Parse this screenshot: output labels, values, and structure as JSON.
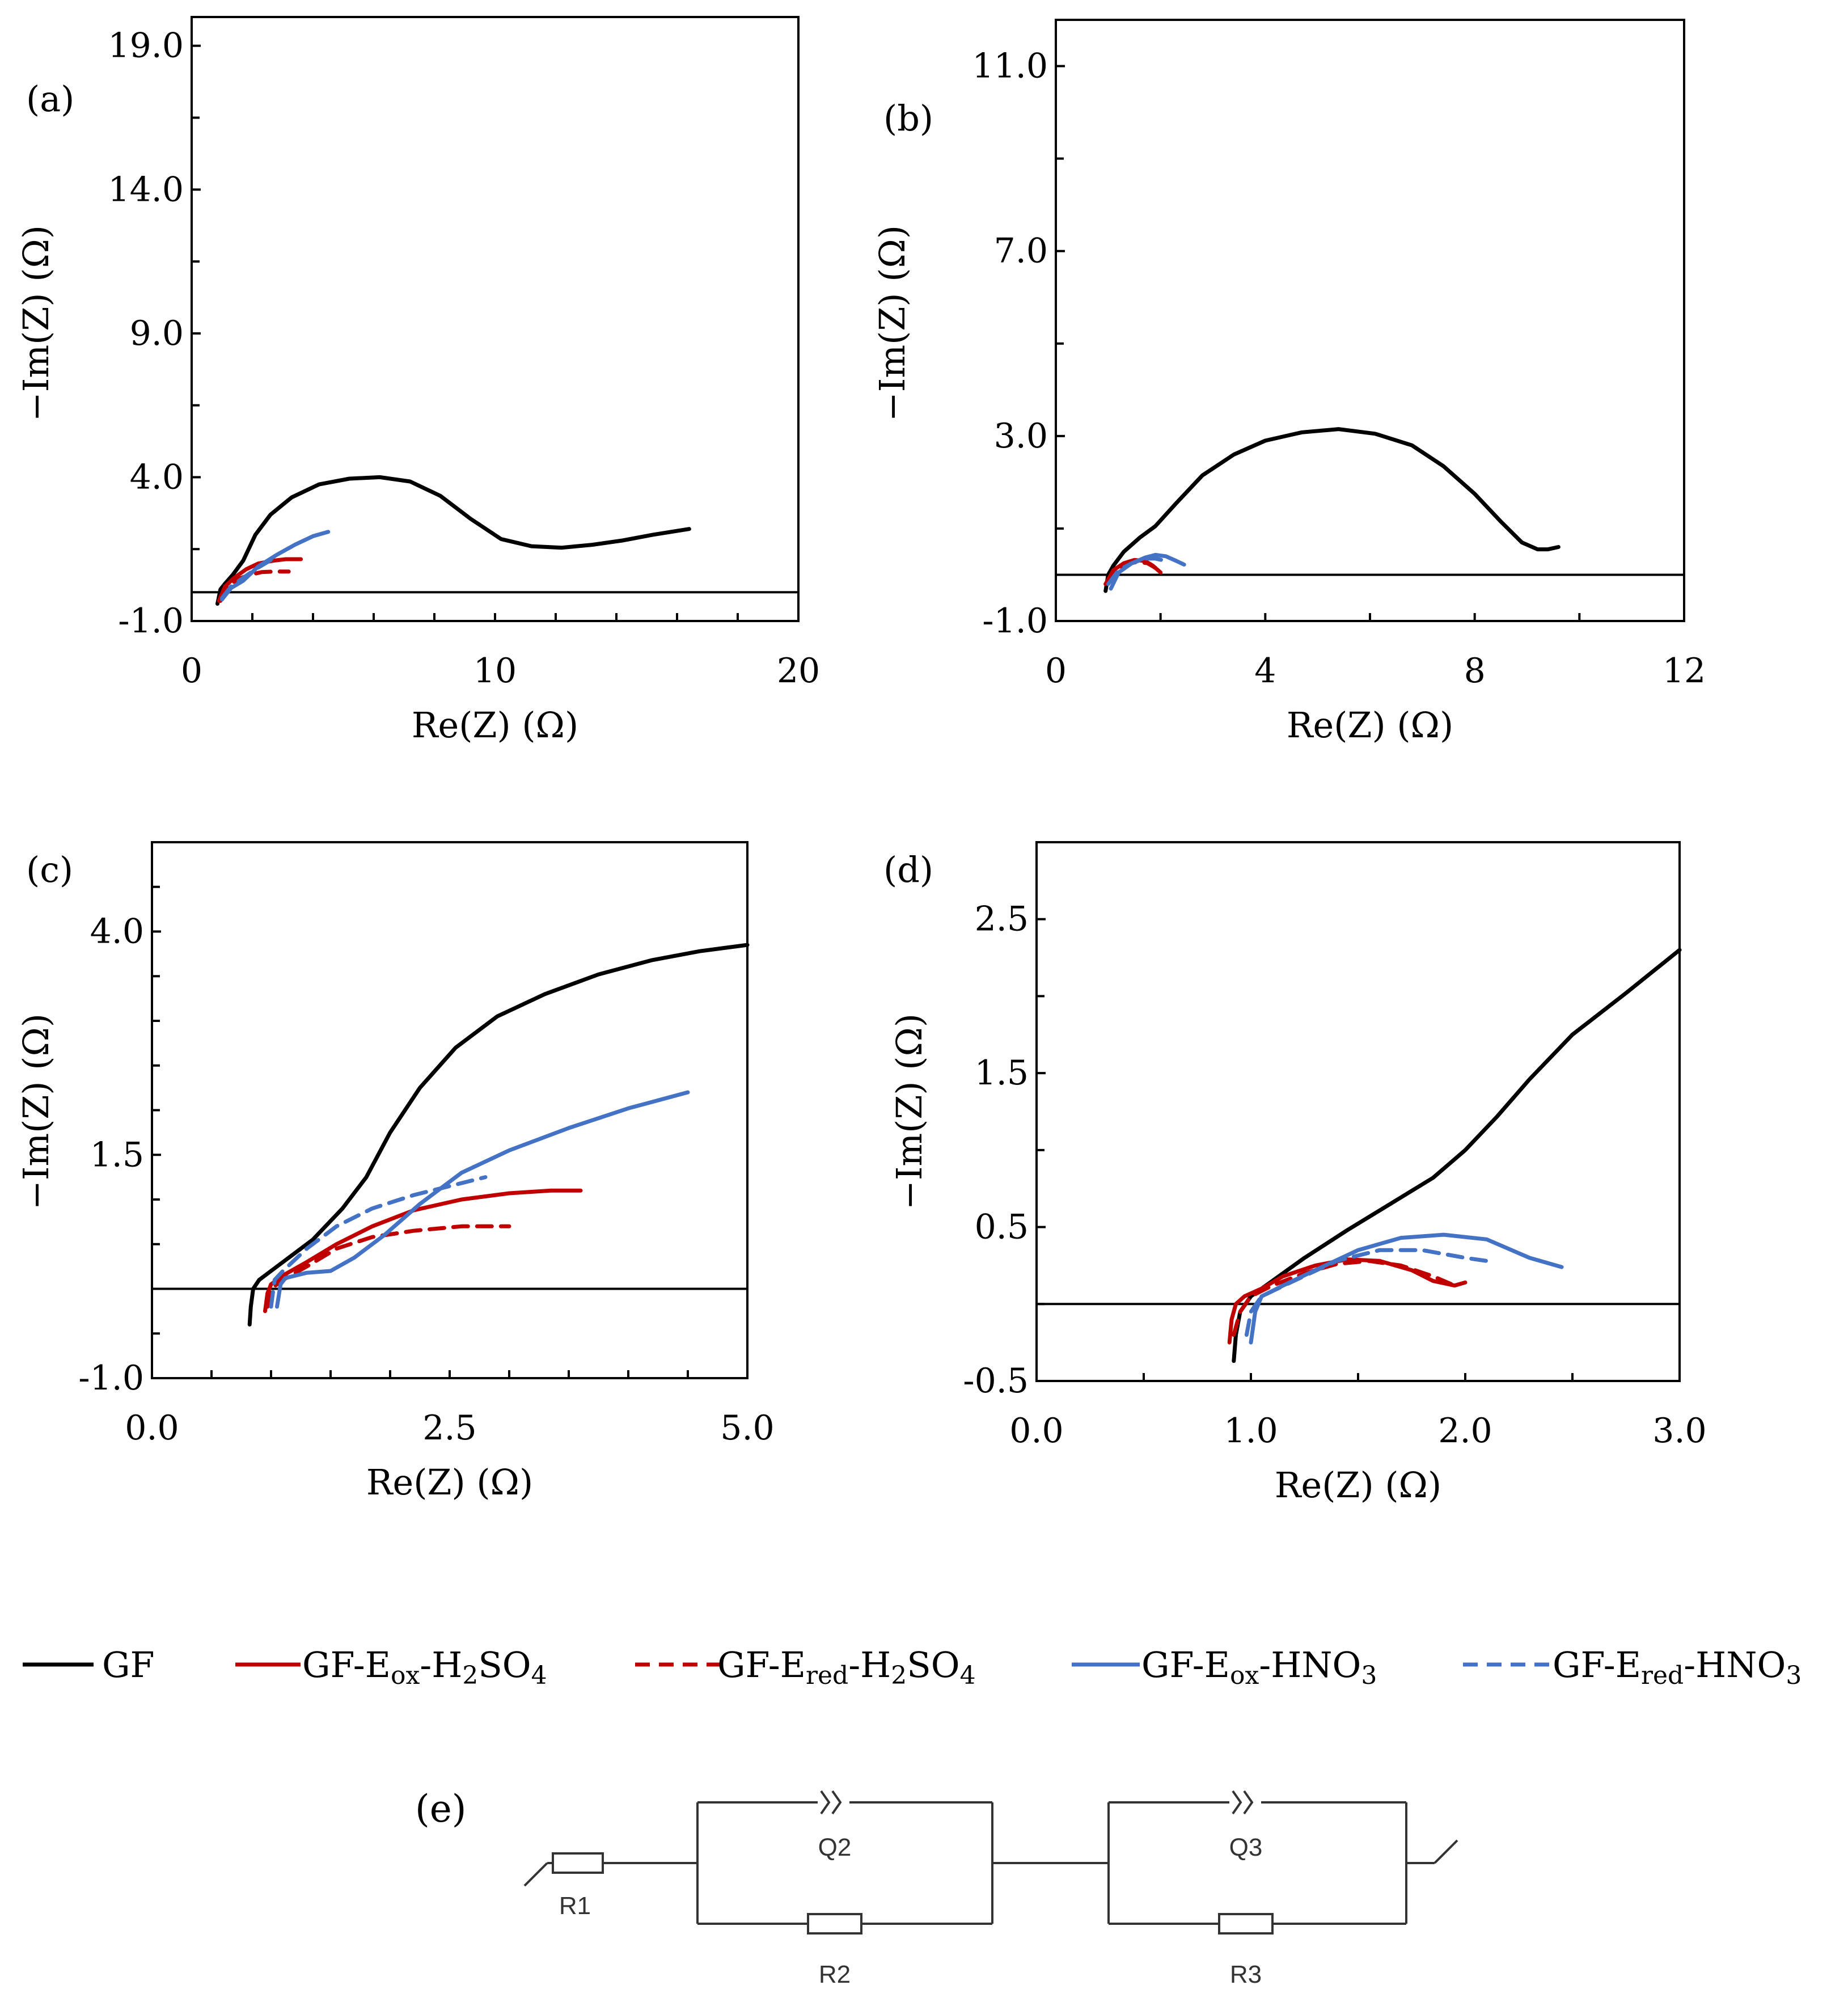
{
  "colors": {
    "GF": "#000000",
    "GF-Eox-H2SO4": "#c00000",
    "GF-Ered-H2SO4": "#c00000",
    "GF-Eox-HNO3": "#4472c4",
    "GF-Ered-HNO3": "#4472c4"
  },
  "chart_data": [
    {
      "panel": "(a)",
      "type": "line",
      "xlabel": "Re(Z) (Ω)",
      "ylabel": "−Im(Z) (Ω)",
      "xlim": [
        0,
        20
      ],
      "ylim": [
        -1,
        20
      ],
      "x_ticks": [
        "0",
        "10",
        "20"
      ],
      "y_ticks": [
        "-1.0",
        "4.0",
        "9.0",
        "14.0",
        "19.0"
      ],
      "x_tick_values": [
        0,
        10,
        20
      ],
      "y_tick_values": [
        -1,
        4,
        9,
        14,
        19
      ],
      "x_minor": 2,
      "y_minor": 2.5,
      "zero_line": 0,
      "series": [
        {
          "name": "GF",
          "dash": false,
          "x": [
            0.85,
            0.95,
            1.1,
            1.35,
            1.7,
            2.1,
            2.6,
            3.3,
            4.2,
            5.2,
            6.2,
            7.2,
            8.2,
            9.2,
            10.2,
            11.2,
            12.2,
            13.2,
            14.2,
            15.2,
            16.4
          ],
          "y": [
            -0.4,
            0.1,
            0.3,
            0.6,
            1.1,
            2.0,
            2.7,
            3.3,
            3.75,
            3.95,
            4.0,
            3.85,
            3.35,
            2.55,
            1.85,
            1.6,
            1.55,
            1.65,
            1.8,
            2.0,
            2.2
          ]
        },
        {
          "name": "GF-Eox-H2SO4",
          "dash": false,
          "x": [
            0.9,
            1.1,
            1.4,
            1.8,
            2.2,
            2.7,
            3.1,
            3.6
          ],
          "y": [
            -0.3,
            0.2,
            0.5,
            0.8,
            1.0,
            1.1,
            1.15,
            1.15
          ]
        },
        {
          "name": "GF-Ered-H2SO4",
          "dash": true,
          "x": [
            0.95,
            1.2,
            1.5,
            1.9,
            2.3,
            2.7,
            3.2
          ],
          "y": [
            -0.3,
            0.2,
            0.45,
            0.6,
            0.7,
            0.72,
            0.72
          ]
        },
        {
          "name": "GF-Eox-HNO3",
          "dash": false,
          "x": [
            1.0,
            1.3,
            1.7,
            2.2,
            2.8,
            3.4,
            4.0,
            4.5
          ],
          "y": [
            -0.25,
            0.15,
            0.4,
            0.9,
            1.3,
            1.65,
            1.95,
            2.1
          ]
        },
        {
          "name": "GF-Ered-HNO3",
          "dash": true,
          "x": [
            1.0,
            1.3,
            1.7,
            2.1,
            2.5,
            2.8
          ],
          "y": [
            -0.2,
            0.2,
            0.5,
            0.8,
            1.05,
            1.25
          ]
        }
      ]
    },
    {
      "panel": "(b)",
      "type": "line",
      "xlabel": "Re(Z) (Ω)",
      "ylabel": "−Im(Z) (Ω)",
      "xlim": [
        0,
        12
      ],
      "ylim": [
        -1,
        12
      ],
      "x_ticks": [
        "0",
        "4",
        "8",
        "12"
      ],
      "y_ticks": [
        "-1.0",
        "3.0",
        "7.0",
        "11.0"
      ],
      "x_tick_values": [
        0,
        4,
        8,
        12
      ],
      "y_tick_values": [
        -1,
        3,
        7,
        11
      ],
      "x_minor": 2,
      "y_minor": 2,
      "zero_line": 0,
      "series": [
        {
          "name": "GF",
          "dash": false,
          "x": [
            0.95,
            1.0,
            1.1,
            1.3,
            1.6,
            1.9,
            2.3,
            2.8,
            3.4,
            4.0,
            4.7,
            5.4,
            6.1,
            6.8,
            7.4,
            8.0,
            8.5,
            8.9,
            9.2,
            9.4,
            9.6
          ],
          "y": [
            -0.35,
            0.0,
            0.2,
            0.5,
            0.8,
            1.05,
            1.55,
            2.15,
            2.6,
            2.9,
            3.08,
            3.15,
            3.05,
            2.8,
            2.35,
            1.75,
            1.15,
            0.7,
            0.55,
            0.55,
            0.6
          ]
        },
        {
          "name": "GF-Eox-H2SO4",
          "dash": false,
          "x": [
            0.95,
            1.1,
            1.3,
            1.5,
            1.7,
            1.85,
            2.0
          ],
          "y": [
            -0.2,
            0.1,
            0.25,
            0.32,
            0.3,
            0.2,
            0.05
          ]
        },
        {
          "name": "GF-Ered-H2SO4",
          "dash": true,
          "x": [
            0.95,
            1.15,
            1.35,
            1.55,
            1.75,
            1.9
          ],
          "y": [
            -0.2,
            0.1,
            0.22,
            0.28,
            0.25,
            0.15
          ]
        },
        {
          "name": "GF-Eox-HNO3",
          "dash": false,
          "x": [
            1.05,
            1.2,
            1.45,
            1.7,
            1.9,
            2.1,
            2.3,
            2.45
          ],
          "y": [
            -0.3,
            0.05,
            0.25,
            0.37,
            0.43,
            0.4,
            0.3,
            0.22
          ]
        },
        {
          "name": "GF-Ered-HNO3",
          "dash": true,
          "x": [
            1.0,
            1.2,
            1.45,
            1.7,
            1.9,
            2.1
          ],
          "y": [
            -0.2,
            0.1,
            0.25,
            0.35,
            0.35,
            0.3
          ]
        }
      ]
    },
    {
      "panel": "(c)",
      "type": "line",
      "xlabel": "Re(Z) (Ω)",
      "ylabel": "−Im(Z) (Ω)",
      "xlim": [
        0,
        5
      ],
      "ylim": [
        -1,
        5
      ],
      "x_ticks": [
        "0.0",
        "2.5",
        "5.0"
      ],
      "y_ticks": [
        "-1.0",
        "1.5",
        "4.0"
      ],
      "x_tick_values": [
        0,
        2.5,
        5
      ],
      "y_tick_values": [
        -1,
        1.5,
        4
      ],
      "x_minor": 0.5,
      "y_minor": 0.5,
      "zero_line": 0,
      "series": [
        {
          "name": "GF",
          "dash": false,
          "x": [
            0.82,
            0.83,
            0.85,
            0.9,
            1.0,
            1.15,
            1.35,
            1.6,
            1.8,
            2.0,
            2.25,
            2.55,
            2.9,
            3.3,
            3.75,
            4.2,
            4.6,
            5.0
          ],
          "y": [
            -0.4,
            -0.2,
            0.0,
            0.1,
            0.2,
            0.35,
            0.55,
            0.9,
            1.25,
            1.75,
            2.25,
            2.7,
            3.05,
            3.3,
            3.52,
            3.68,
            3.78,
            3.85
          ]
        },
        {
          "name": "GF-Eox-H2SO4",
          "dash": false,
          "x": [
            0.95,
            0.97,
            1.0,
            1.1,
            1.3,
            1.55,
            1.85,
            2.2,
            2.6,
            3.0,
            3.35,
            3.6
          ],
          "y": [
            -0.25,
            -0.05,
            0.05,
            0.15,
            0.3,
            0.5,
            0.7,
            0.88,
            1.0,
            1.07,
            1.1,
            1.1
          ]
        },
        {
          "name": "GF-Ered-H2SO4",
          "dash": true,
          "x": [
            0.97,
            1.0,
            1.1,
            1.3,
            1.55,
            1.85,
            2.2,
            2.6,
            3.0
          ],
          "y": [
            -0.2,
            0.0,
            0.1,
            0.25,
            0.45,
            0.58,
            0.65,
            0.7,
            0.7
          ]
        },
        {
          "name": "GF-Eox-HNO3",
          "dash": false,
          "x": [
            1.05,
            1.08,
            1.12,
            1.3,
            1.5,
            1.7,
            1.95,
            2.25,
            2.6,
            3.0,
            3.5,
            4.0,
            4.5
          ],
          "y": [
            -0.2,
            0.05,
            0.12,
            0.18,
            0.2,
            0.35,
            0.6,
            0.95,
            1.3,
            1.55,
            1.8,
            2.02,
            2.2
          ]
        },
        {
          "name": "GF-Ered-HNO3",
          "dash": true,
          "x": [
            1.0,
            1.03,
            1.1,
            1.3,
            1.55,
            1.85,
            2.2,
            2.5,
            2.8
          ],
          "y": [
            -0.2,
            0.1,
            0.2,
            0.45,
            0.7,
            0.9,
            1.05,
            1.15,
            1.25
          ]
        }
      ]
    },
    {
      "panel": "(d)",
      "type": "line",
      "xlabel": "Re(Z) (Ω)",
      "ylabel": "−Im(Z) (Ω)",
      "xlim": [
        0,
        3
      ],
      "ylim": [
        -0.5,
        3
      ],
      "x_ticks": [
        "0.0",
        "1.0",
        "2.0",
        "3.0"
      ],
      "y_ticks": [
        "-0.5",
        "0.5",
        "1.5",
        "2.5"
      ],
      "x_tick_values": [
        0,
        1,
        2,
        3
      ],
      "y_tick_values": [
        -0.5,
        0.5,
        1.5,
        2.5
      ],
      "x_minor": 0.5,
      "y_minor": 0.5,
      "zero_line": 0,
      "series": [
        {
          "name": "GF",
          "dash": false,
          "x": [
            0.92,
            0.93,
            0.95,
            1.0,
            1.1,
            1.25,
            1.45,
            1.65,
            1.85,
            2.0,
            2.15,
            2.3,
            2.5,
            2.75,
            3.0
          ],
          "y": [
            -0.37,
            -0.2,
            -0.05,
            0.05,
            0.15,
            0.3,
            0.48,
            0.65,
            0.82,
            1.0,
            1.22,
            1.46,
            1.75,
            2.02,
            2.3
          ]
        },
        {
          "name": "GF-Eox-H2SO4",
          "dash": false,
          "x": [
            0.9,
            0.91,
            0.93,
            0.97,
            1.05,
            1.15,
            1.3,
            1.45,
            1.6,
            1.75,
            1.85,
            1.95,
            2.0
          ],
          "y": [
            -0.25,
            -0.1,
            0.0,
            0.05,
            0.1,
            0.18,
            0.25,
            0.29,
            0.28,
            0.22,
            0.15,
            0.12,
            0.14
          ]
        },
        {
          "name": "GF-Ered-H2SO4",
          "dash": true,
          "x": [
            0.92,
            0.95,
            1.0,
            1.1,
            1.25,
            1.4,
            1.55,
            1.7,
            1.85,
            1.95
          ],
          "y": [
            -0.2,
            -0.05,
            0.05,
            0.12,
            0.2,
            0.26,
            0.28,
            0.25,
            0.18,
            0.12
          ]
        },
        {
          "name": "GF-Eox-HNO3",
          "dash": false,
          "x": [
            1.0,
            1.02,
            1.05,
            1.15,
            1.3,
            1.5,
            1.7,
            1.9,
            2.1,
            2.3,
            2.45
          ],
          "y": [
            -0.25,
            -0.05,
            0.05,
            0.12,
            0.22,
            0.35,
            0.43,
            0.45,
            0.42,
            0.3,
            0.24
          ]
        },
        {
          "name": "GF-Ered-HNO3",
          "dash": true,
          "x": [
            0.98,
            1.0,
            1.05,
            1.2,
            1.4,
            1.6,
            1.8,
            2.0,
            2.1
          ],
          "y": [
            -0.2,
            -0.05,
            0.05,
            0.15,
            0.28,
            0.35,
            0.35,
            0.3,
            0.28
          ]
        }
      ]
    }
  ],
  "legend": {
    "entries": [
      {
        "key": "GF",
        "main": "GF",
        "parts": [
          [
            "GF",
            ""
          ]
        ],
        "dash": false
      },
      {
        "key": "GF-Eox-H2SO4",
        "main": "GF-Eox-H2SO4",
        "parts": [
          [
            "GF-E",
            ""
          ],
          [
            "ox",
            "sub"
          ],
          [
            "-H",
            ""
          ],
          [
            "2",
            "sub"
          ],
          [
            "SO",
            ""
          ],
          [
            "4",
            "sub"
          ]
        ],
        "dash": false
      },
      {
        "key": "GF-Ered-H2SO4",
        "main": "GF-Ered-H2SO4",
        "parts": [
          [
            "GF-E",
            ""
          ],
          [
            "red",
            "sub"
          ],
          [
            "-H",
            ""
          ],
          [
            "2",
            "sub"
          ],
          [
            "SO",
            ""
          ],
          [
            "4",
            "sub"
          ]
        ],
        "dash": true
      },
      {
        "key": "GF-Eox-HNO3",
        "main": "GF-Eox-HNO3",
        "parts": [
          [
            "GF-E",
            ""
          ],
          [
            "ox",
            "sub"
          ],
          [
            "-HNO",
            ""
          ],
          [
            "3",
            "sub"
          ]
        ],
        "dash": false
      },
      {
        "key": "GF-Ered-HNO3",
        "main": "GF-Ered-HNO3",
        "parts": [
          [
            "GF-E",
            ""
          ],
          [
            "red",
            "sub"
          ],
          [
            "-HNO",
            ""
          ],
          [
            "3",
            "sub"
          ]
        ],
        "dash": true
      }
    ]
  },
  "circuit": {
    "tag": "(e)",
    "labels": {
      "R1": "R1",
      "Q2": "Q2",
      "R2": "R2",
      "Q3": "Q3",
      "R3": "R3"
    }
  }
}
